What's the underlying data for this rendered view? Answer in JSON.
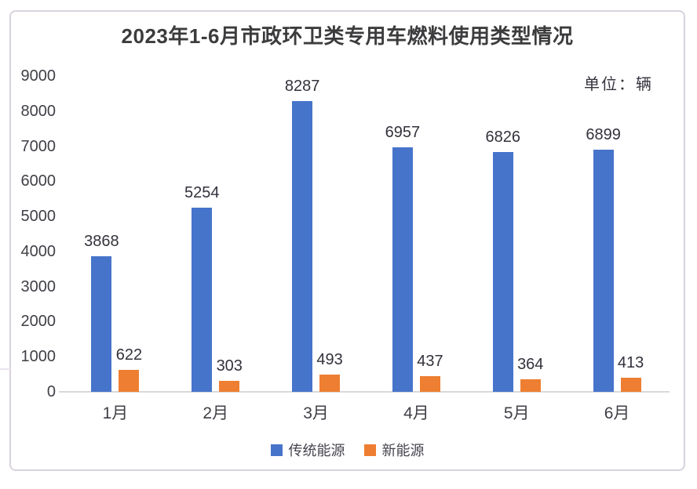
{
  "title": "2023年1-6月市政环卫类专用车燃料使用类型情况",
  "unit_label": "单位：辆",
  "colors": {
    "traditional_blue": "#4674cb",
    "new_energy_orange": "#ee7e31",
    "axis_line": "#d9d9d9",
    "card_border": "#d8d2de",
    "text": "#3f3f46"
  },
  "legend": [
    {
      "label": "传统能源",
      "color": "#4674cb"
    },
    {
      "label": "新能源",
      "color": "#ee7e31"
    }
  ],
  "chart_data": {
    "type": "bar",
    "title": "2023年1-6月市政环卫类专用车燃料使用类型情况",
    "unit": "辆",
    "categories": [
      "1月",
      "2月",
      "3月",
      "4月",
      "5月",
      "6月"
    ],
    "series": [
      {
        "name": "传统能源",
        "color": "#4674cb",
        "values": [
          3868,
          5254,
          8287,
          6957,
          6826,
          6899
        ]
      },
      {
        "name": "新能源",
        "color": "#ee7e31",
        "values": [
          622,
          303,
          493,
          437,
          364,
          413
        ]
      }
    ],
    "ylim": [
      0,
      9000
    ],
    "yticks": [
      0,
      1000,
      2000,
      3000,
      4000,
      5000,
      6000,
      7000,
      8000,
      9000
    ],
    "grid": false,
    "legend_position": "bottom",
    "data_labels": true
  }
}
